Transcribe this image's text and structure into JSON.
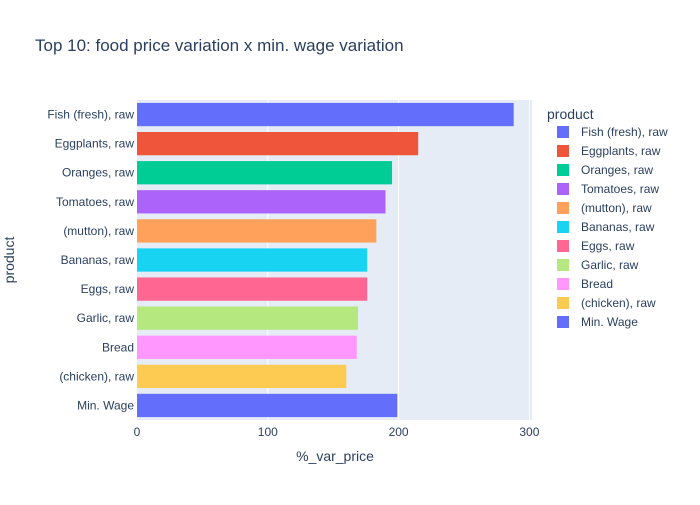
{
  "chart_data": {
    "type": "bar",
    "orientation": "horizontal",
    "title": "Top 10: food price variation x min. wage variation",
    "xlabel": "%_var_price",
    "ylabel": "product",
    "xlim": [
      0,
      302
    ],
    "x_ticks": [
      0,
      100,
      200,
      300
    ],
    "grid": true,
    "legend_position": "right",
    "legend_title": "product",
    "plot_background": "#E5ECF6",
    "categories": [
      "Fish (fresh), raw",
      "Eggplants, raw",
      "Oranges, raw",
      "Tomatoes, raw",
      "(mutton), raw",
      "Bananas, raw",
      "Eggs, raw",
      "Garlic, raw",
      "Bread",
      "(chicken), raw",
      "Min. Wage"
    ],
    "series": [
      {
        "name": "Fish (fresh), raw",
        "value": 288,
        "color": "#636EFA"
      },
      {
        "name": "Eggplants, raw",
        "value": 215,
        "color": "#EF553B"
      },
      {
        "name": "Oranges, raw",
        "value": 195,
        "color": "#00CC96"
      },
      {
        "name": "Tomatoes, raw",
        "value": 190,
        "color": "#AB63FA"
      },
      {
        "name": "(mutton), raw",
        "value": 183,
        "color": "#FFA15A"
      },
      {
        "name": "Bananas, raw",
        "value": 176,
        "color": "#19D3F3"
      },
      {
        "name": "Eggs, raw",
        "value": 176,
        "color": "#FF6692"
      },
      {
        "name": "Garlic, raw",
        "value": 169,
        "color": "#B6E880"
      },
      {
        "name": "Bread",
        "value": 168,
        "color": "#FF97FF"
      },
      {
        "name": "(chicken), raw",
        "value": 160,
        "color": "#FECB52"
      },
      {
        "name": "Min. Wage",
        "value": 199,
        "color": "#636EFA"
      }
    ]
  }
}
